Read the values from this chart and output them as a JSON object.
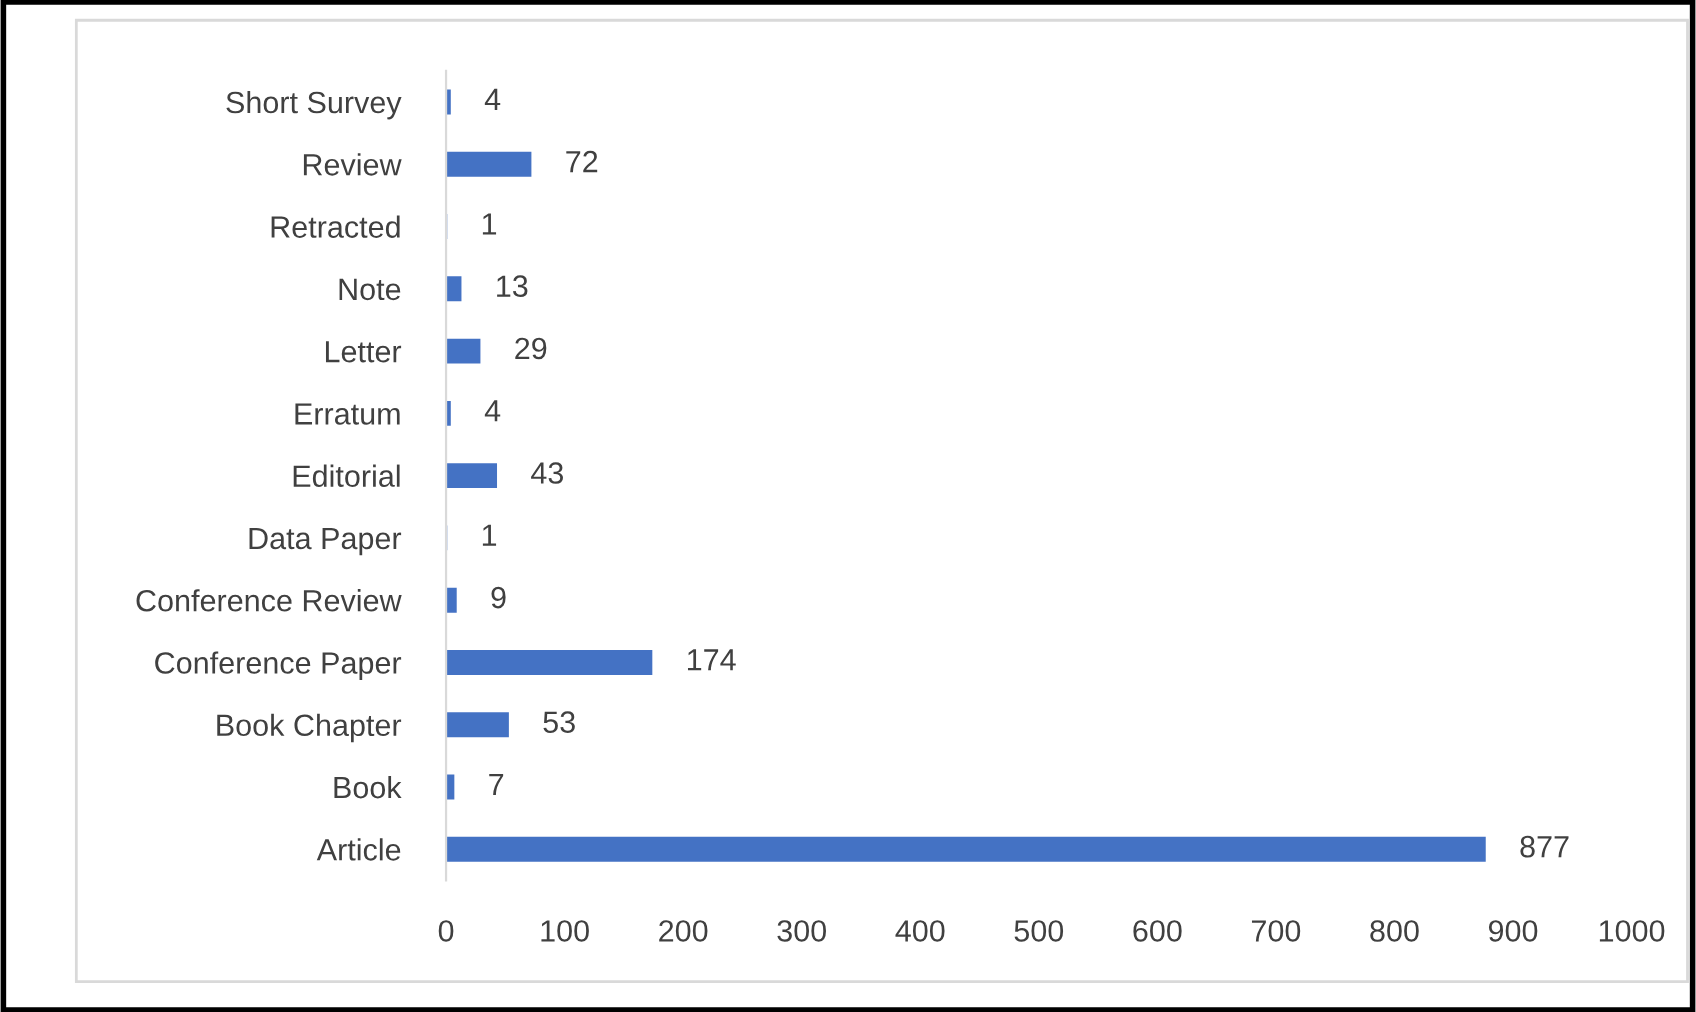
{
  "chart_data": {
    "type": "bar",
    "orientation": "horizontal",
    "categories": [
      "Short Survey",
      "Review",
      "Retracted",
      "Note",
      "Letter",
      "Erratum",
      "Editorial",
      "Data Paper",
      "Conference Review",
      "Conference Paper",
      "Book Chapter",
      "Book",
      "Article"
    ],
    "values": [
      4,
      72,
      1,
      13,
      29,
      4,
      43,
      1,
      9,
      174,
      53,
      7,
      877
    ],
    "color": "#4472c4",
    "xlim": [
      0,
      1000
    ],
    "xticks": [
      0,
      100,
      200,
      300,
      400,
      500,
      600,
      700,
      800,
      900,
      1000
    ],
    "data_labels": true,
    "grid": false,
    "legend": false
  }
}
